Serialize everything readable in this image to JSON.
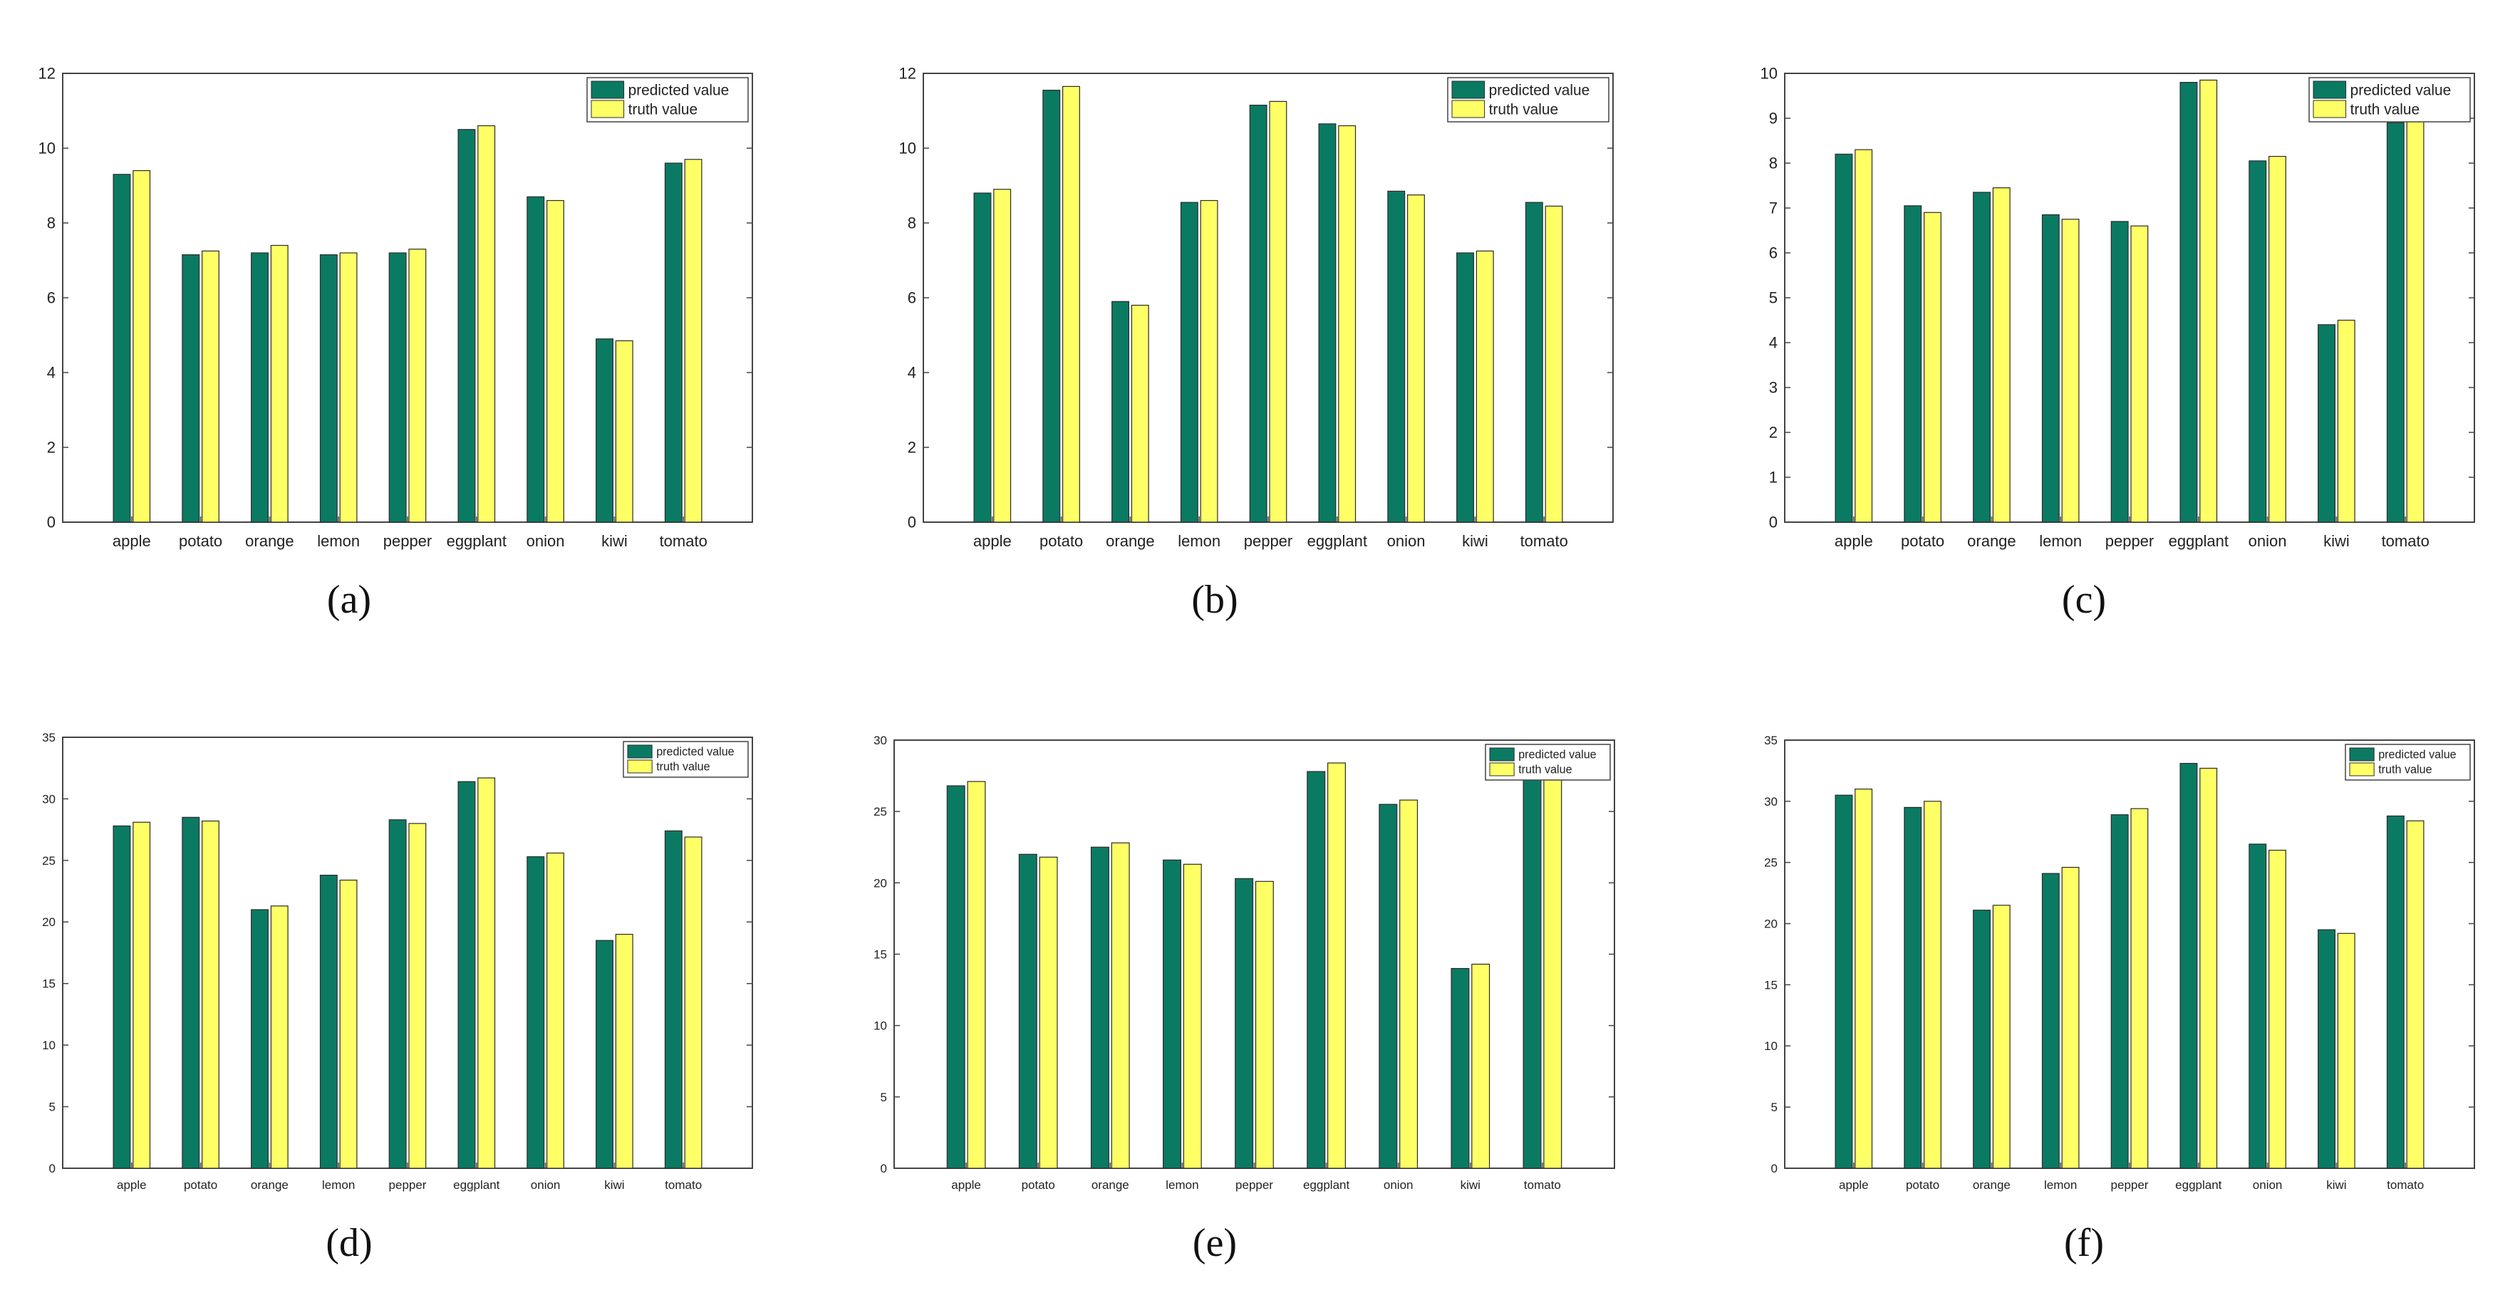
{
  "colors": {
    "predicted": "#0b7a63",
    "truth": "#ffff66",
    "bar_edge": "#2b2b2b",
    "axis": "#444444"
  },
  "chart_data": [
    {
      "type": "bar",
      "caption": "(a)",
      "categories": [
        "apple",
        "potato",
        "orange",
        "lemon",
        "pepper",
        "eggplant",
        "onion",
        "kiwi",
        "tomato"
      ],
      "series": [
        {
          "name": "predicted value",
          "values": [
            9.3,
            7.15,
            7.2,
            7.15,
            7.2,
            10.5,
            8.7,
            4.9,
            9.6
          ]
        },
        {
          "name": "truth value",
          "values": [
            9.4,
            7.25,
            7.4,
            7.2,
            7.3,
            10.6,
            8.6,
            4.85,
            9.7
          ]
        }
      ],
      "ylim": [
        0,
        12
      ],
      "yticks": [
        0,
        2,
        4,
        6,
        8,
        10,
        12
      ],
      "legend": "top-right"
    },
    {
      "type": "bar",
      "caption": "(b)",
      "categories": [
        "apple",
        "potato",
        "orange",
        "lemon",
        "pepper",
        "eggplant",
        "onion",
        "kiwi",
        "tomato"
      ],
      "series": [
        {
          "name": "predicted value",
          "values": [
            8.8,
            11.55,
            5.9,
            8.55,
            11.15,
            10.65,
            8.85,
            7.2,
            8.55
          ]
        },
        {
          "name": "truth value",
          "values": [
            8.9,
            11.65,
            5.8,
            8.6,
            11.25,
            10.6,
            8.75,
            7.25,
            8.45
          ]
        }
      ],
      "ylim": [
        0,
        12
      ],
      "yticks": [
        0,
        2,
        4,
        6,
        8,
        10,
        12
      ],
      "legend": "top-right"
    },
    {
      "type": "bar",
      "caption": "(c)",
      "categories": [
        "apple",
        "potato",
        "orange",
        "lemon",
        "pepper",
        "eggplant",
        "onion",
        "kiwi",
        "tomato"
      ],
      "series": [
        {
          "name": "predicted value",
          "values": [
            8.2,
            7.05,
            7.35,
            6.85,
            6.7,
            9.8,
            8.05,
            4.4,
            8.9
          ]
        },
        {
          "name": "truth value",
          "values": [
            8.3,
            6.9,
            7.45,
            6.75,
            6.6,
            9.85,
            8.15,
            4.5,
            8.95
          ]
        }
      ],
      "ylim": [
        0,
        10
      ],
      "yticks": [
        0,
        1,
        2,
        3,
        4,
        5,
        6,
        7,
        8,
        9,
        10
      ],
      "legend": "top-right"
    },
    {
      "type": "bar",
      "caption": "(d)",
      "categories": [
        "apple",
        "potato",
        "orange",
        "lemon",
        "pepper",
        "eggplant",
        "onion",
        "kiwi",
        "tomato"
      ],
      "series": [
        {
          "name": "predicted value",
          "values": [
            27.8,
            28.5,
            21.0,
            23.8,
            28.3,
            31.4,
            25.3,
            18.5,
            27.4
          ]
        },
        {
          "name": "truth value",
          "values": [
            28.1,
            28.2,
            21.3,
            23.4,
            28.0,
            31.7,
            25.6,
            19.0,
            26.9
          ]
        }
      ],
      "ylim": [
        0,
        35
      ],
      "yticks": [
        0,
        5,
        10,
        15,
        20,
        25,
        30,
        35
      ],
      "legend": "top-right"
    },
    {
      "type": "bar",
      "caption": "(e)",
      "categories": [
        "apple",
        "potato",
        "orange",
        "lemon",
        "pepper",
        "eggplant",
        "onion",
        "kiwi",
        "tomato"
      ],
      "series": [
        {
          "name": "predicted value",
          "values": [
            26.8,
            22.0,
            22.5,
            21.6,
            20.3,
            27.8,
            25.5,
            14.0,
            27.5
          ]
        },
        {
          "name": "truth value",
          "values": [
            27.1,
            21.8,
            22.8,
            21.3,
            20.1,
            28.4,
            25.8,
            14.3,
            27.6
          ]
        }
      ],
      "ylim": [
        0,
        30
      ],
      "yticks": [
        0,
        5,
        10,
        15,
        20,
        25,
        30
      ],
      "legend": "top-right"
    },
    {
      "type": "bar",
      "caption": "(f)",
      "categories": [
        "apple",
        "potato",
        "orange",
        "lemon",
        "pepper",
        "eggplant",
        "onion",
        "kiwi",
        "tomato"
      ],
      "series": [
        {
          "name": "predicted value",
          "values": [
            30.5,
            29.5,
            21.1,
            24.1,
            28.9,
            33.1,
            26.5,
            19.5,
            28.8
          ]
        },
        {
          "name": "truth value",
          "values": [
            31.0,
            30.0,
            21.5,
            24.6,
            29.4,
            32.7,
            26.0,
            19.2,
            28.4
          ]
        }
      ],
      "ylim": [
        0,
        35
      ],
      "yticks": [
        0,
        5,
        10,
        15,
        20,
        25,
        30,
        35
      ],
      "legend": "top-right"
    }
  ]
}
